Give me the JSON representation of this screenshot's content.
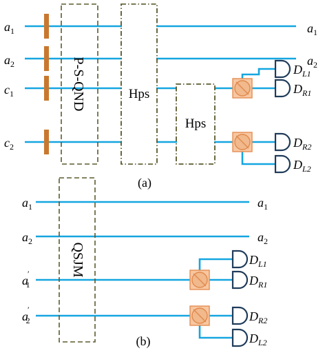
{
  "panel_a": {
    "caption": "(a)",
    "inputs": {
      "a1": "a",
      "a1_sub": "1",
      "a2": "a",
      "a2_sub": "2",
      "c1": "c",
      "c1_sub": "1",
      "c2": "c",
      "c2_sub": "2"
    },
    "psqnd_label": "P-S-QND",
    "hps1_label": "Hps",
    "hps2_label": "Hps",
    "outputs": {
      "a1": "a",
      "a1_sub": "1",
      "a2": "a",
      "a2_sub": "2"
    },
    "detectors": [
      {
        "main": "D",
        "sub": "L1"
      },
      {
        "main": "D",
        "sub": "R1"
      },
      {
        "main": "D",
        "sub": "R2"
      },
      {
        "main": "D",
        "sub": "L2"
      }
    ]
  },
  "panel_b": {
    "caption": "(b)",
    "inputs": {
      "a1": "a",
      "a1_sub": "1",
      "a2": "a",
      "a2_sub": "2",
      "a1p": "a",
      "a1p_sub": "1",
      "a1p_prime": "′",
      "a2p": "a",
      "a2p_sub": "2",
      "a2p_prime": "′"
    },
    "qsjm_label": "QSJM",
    "outputs": {
      "a1": "a",
      "a1_sub": "1",
      "a2": "a",
      "a2_sub": "2"
    },
    "detectors": [
      {
        "main": "D",
        "sub": "L1"
      },
      {
        "main": "D",
        "sub": "R1"
      },
      {
        "main": "D",
        "sub": "R2"
      },
      {
        "main": "D",
        "sub": "L2"
      }
    ]
  },
  "colors": {
    "wire": "#14a6e0",
    "box_outline": "#5b5a2e",
    "phase_bar": "#c8782e",
    "beam_splitter": "#f1b98c",
    "detector": "#1f3b5a"
  }
}
